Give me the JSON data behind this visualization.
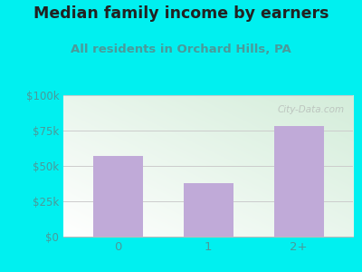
{
  "title": "Median family income by earners",
  "subtitle": "All residents in Orchard Hills, PA",
  "categories": [
    "0",
    "1",
    "2+"
  ],
  "values": [
    57000,
    38000,
    78000
  ],
  "bar_color": "#c0aad8",
  "ylim": [
    0,
    100000
  ],
  "yticks": [
    0,
    25000,
    50000,
    75000,
    100000
  ],
  "ytick_labels": [
    "$0",
    "$25k",
    "$50k",
    "$75k",
    "$100k"
  ],
  "background_color": "#00f0f0",
  "plot_bg_color_topleft": "#d4edda",
  "plot_bg_color_bottomright": "#ffffff",
  "title_color": "#222222",
  "subtitle_color": "#4a9a9a",
  "tick_color": "#4a9a9a",
  "watermark": "City-Data.com",
  "title_fontsize": 12.5,
  "subtitle_fontsize": 9.5,
  "grid_color": "#cccccc"
}
